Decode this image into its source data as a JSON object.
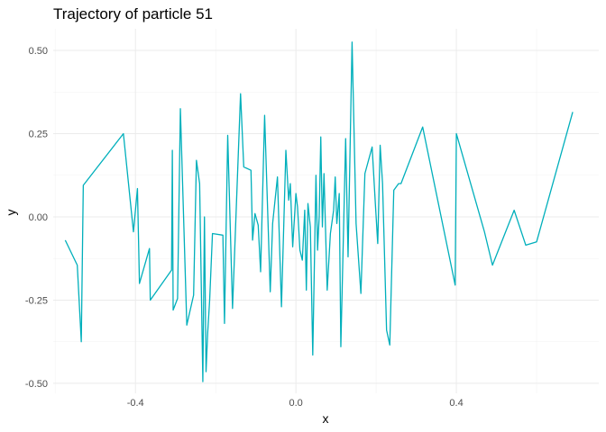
{
  "chart_data": {
    "type": "line",
    "title": "Trajectory of particle 51",
    "xlabel": "x",
    "ylabel": "y",
    "xlim": [
      -0.605,
      0.755
    ],
    "ylim": [
      -0.53,
      0.565
    ],
    "xticks": [
      -0.4,
      0.0,
      0.4
    ],
    "xtick_labels": [
      "-0.4",
      "0.0",
      "0.4"
    ],
    "yticks": [
      -0.5,
      -0.25,
      0.0,
      0.25,
      0.5
    ],
    "ytick_labels": [
      "-0.50",
      "-0.25",
      "0.00",
      "0.25",
      "0.50"
    ],
    "grid": true,
    "line_color": "#00AFBB",
    "series": [
      {
        "points": [
          [
            -0.575,
            -0.07
          ],
          [
            -0.545,
            -0.145
          ],
          [
            -0.535,
            -0.375
          ],
          [
            -0.53,
            0.095
          ],
          [
            -0.43,
            0.25
          ],
          [
            -0.405,
            -0.045
          ],
          [
            -0.395,
            0.085
          ],
          [
            -0.39,
            -0.2
          ],
          [
            -0.365,
            -0.095
          ],
          [
            -0.363,
            -0.25
          ],
          [
            -0.31,
            -0.16
          ],
          [
            -0.308,
            0.2
          ],
          [
            -0.306,
            -0.28
          ],
          [
            -0.295,
            -0.245
          ],
          [
            -0.288,
            0.325
          ],
          [
            -0.272,
            -0.325
          ],
          [
            -0.255,
            -0.235
          ],
          [
            -0.248,
            0.17
          ],
          [
            -0.24,
            0.1
          ],
          [
            -0.232,
            -0.495
          ],
          [
            -0.228,
            0.0
          ],
          [
            -0.224,
            -0.465
          ],
          [
            -0.22,
            -0.35
          ],
          [
            -0.215,
            -0.25
          ],
          [
            -0.208,
            -0.05
          ],
          [
            -0.182,
            -0.055
          ],
          [
            -0.178,
            -0.32
          ],
          [
            -0.17,
            0.245
          ],
          [
            -0.158,
            -0.275
          ],
          [
            -0.138,
            0.37
          ],
          [
            -0.13,
            0.15
          ],
          [
            -0.112,
            0.14
          ],
          [
            -0.108,
            -0.07
          ],
          [
            -0.102,
            0.01
          ],
          [
            -0.094,
            -0.025
          ],
          [
            -0.088,
            -0.165
          ],
          [
            -0.078,
            0.305
          ],
          [
            -0.064,
            -0.225
          ],
          [
            -0.058,
            -0.02
          ],
          [
            -0.046,
            0.12
          ],
          [
            -0.036,
            -0.27
          ],
          [
            -0.025,
            0.2
          ],
          [
            -0.018,
            0.05
          ],
          [
            -0.014,
            0.1
          ],
          [
            -0.008,
            -0.09
          ],
          [
            0.0,
            0.07
          ],
          [
            0.004,
            0.03
          ],
          [
            0.01,
            -0.1
          ],
          [
            0.016,
            -0.13
          ],
          [
            0.022,
            0.02
          ],
          [
            0.026,
            -0.22
          ],
          [
            0.03,
            0.04
          ],
          [
            0.036,
            -0.03
          ],
          [
            0.042,
            -0.415
          ],
          [
            0.05,
            0.125
          ],
          [
            0.054,
            -0.1
          ],
          [
            0.058,
            0.0
          ],
          [
            0.062,
            0.24
          ],
          [
            0.066,
            -0.03
          ],
          [
            0.07,
            0.13
          ],
          [
            0.078,
            -0.22
          ],
          [
            0.086,
            -0.05
          ],
          [
            0.094,
            0.02
          ],
          [
            0.098,
            0.12
          ],
          [
            0.102,
            -0.02
          ],
          [
            0.108,
            0.07
          ],
          [
            0.112,
            -0.39
          ],
          [
            0.124,
            0.235
          ],
          [
            0.13,
            -0.12
          ],
          [
            0.14,
            0.525
          ],
          [
            0.15,
            -0.02
          ],
          [
            0.162,
            -0.23
          ],
          [
            0.172,
            0.13
          ],
          [
            0.19,
            0.21
          ],
          [
            0.198,
            0.04
          ],
          [
            0.204,
            -0.08
          ],
          [
            0.21,
            0.215
          ],
          [
            0.216,
            0.1
          ],
          [
            0.226,
            -0.34
          ],
          [
            0.234,
            -0.385
          ],
          [
            0.244,
            0.08
          ],
          [
            0.256,
            0.1
          ],
          [
            0.262,
            0.1
          ],
          [
            0.316,
            0.27
          ],
          [
            0.397,
            -0.205
          ],
          [
            0.4,
            0.25
          ],
          [
            0.47,
            -0.045
          ],
          [
            0.49,
            -0.145
          ],
          [
            0.544,
            0.02
          ],
          [
            0.573,
            -0.085
          ],
          [
            0.6,
            -0.075
          ],
          [
            0.69,
            0.315
          ]
        ]
      }
    ]
  }
}
